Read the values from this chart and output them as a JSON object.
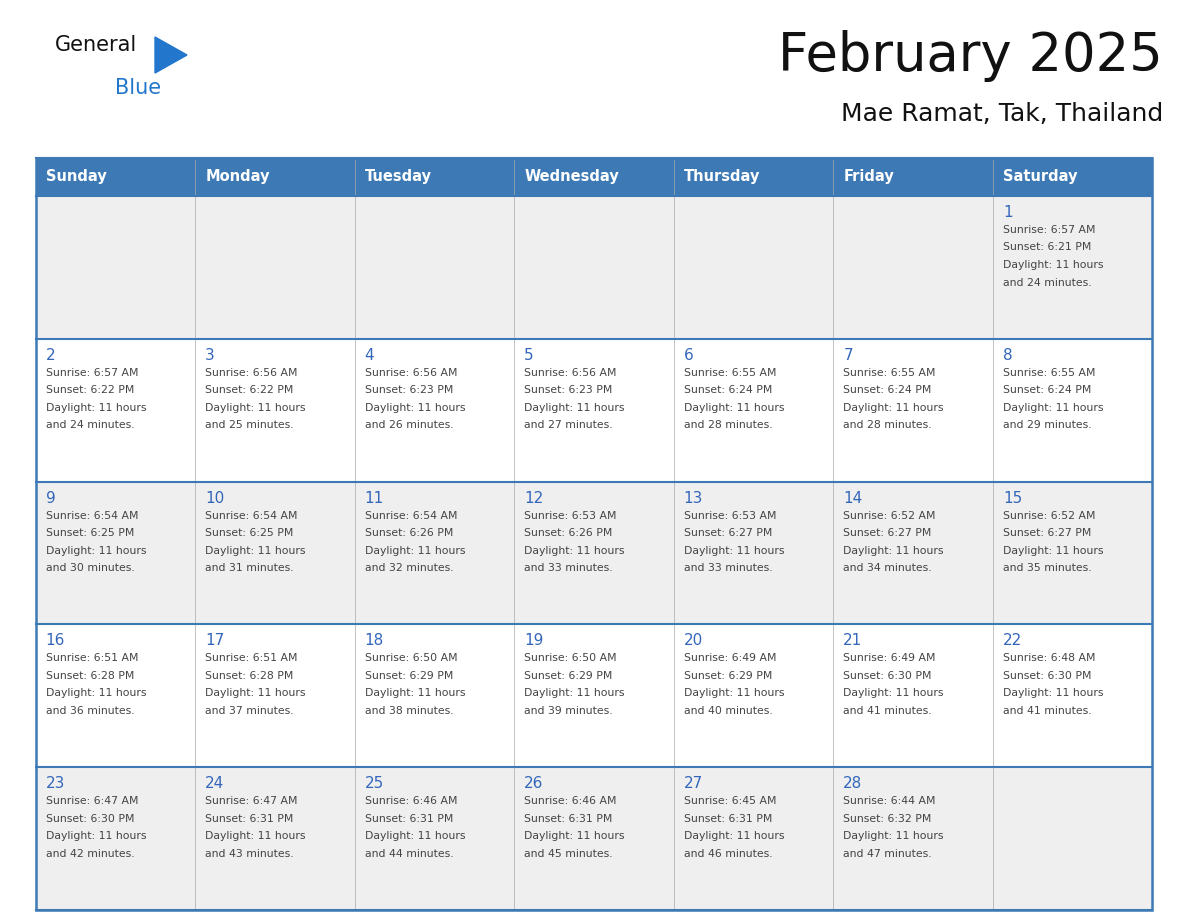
{
  "title": "February 2025",
  "subtitle": "Mae Ramat, Tak, Thailand",
  "days_of_week": [
    "Sunday",
    "Monday",
    "Tuesday",
    "Wednesday",
    "Thursday",
    "Friday",
    "Saturday"
  ],
  "header_bg": "#3d7ab5",
  "header_text": "#ffffff",
  "row_bg_light": "#efefef",
  "row_bg_white": "#ffffff",
  "day_num_color": "#3366bb",
  "text_color": "#444444",
  "border_color": "#3d7ab5",
  "thin_line_color": "#aaaaaa",
  "title_color": "#111111",
  "logo_black": "#111111",
  "logo_blue": "#2277cc",
  "triangle_blue": "#2277cc",
  "calendar": [
    [
      null,
      null,
      null,
      null,
      null,
      null,
      {
        "day": 1,
        "sunrise": "6:57 AM",
        "sunset": "6:21 PM",
        "daylight": "11 hours and 24 minutes."
      }
    ],
    [
      {
        "day": 2,
        "sunrise": "6:57 AM",
        "sunset": "6:22 PM",
        "daylight": "11 hours and 24 minutes."
      },
      {
        "day": 3,
        "sunrise": "6:56 AM",
        "sunset": "6:22 PM",
        "daylight": "11 hours and 25 minutes."
      },
      {
        "day": 4,
        "sunrise": "6:56 AM",
        "sunset": "6:23 PM",
        "daylight": "11 hours and 26 minutes."
      },
      {
        "day": 5,
        "sunrise": "6:56 AM",
        "sunset": "6:23 PM",
        "daylight": "11 hours and 27 minutes."
      },
      {
        "day": 6,
        "sunrise": "6:55 AM",
        "sunset": "6:24 PM",
        "daylight": "11 hours and 28 minutes."
      },
      {
        "day": 7,
        "sunrise": "6:55 AM",
        "sunset": "6:24 PM",
        "daylight": "11 hours and 28 minutes."
      },
      {
        "day": 8,
        "sunrise": "6:55 AM",
        "sunset": "6:24 PM",
        "daylight": "11 hours and 29 minutes."
      }
    ],
    [
      {
        "day": 9,
        "sunrise": "6:54 AM",
        "sunset": "6:25 PM",
        "daylight": "11 hours and 30 minutes."
      },
      {
        "day": 10,
        "sunrise": "6:54 AM",
        "sunset": "6:25 PM",
        "daylight": "11 hours and 31 minutes."
      },
      {
        "day": 11,
        "sunrise": "6:54 AM",
        "sunset": "6:26 PM",
        "daylight": "11 hours and 32 minutes."
      },
      {
        "day": 12,
        "sunrise": "6:53 AM",
        "sunset": "6:26 PM",
        "daylight": "11 hours and 33 minutes."
      },
      {
        "day": 13,
        "sunrise": "6:53 AM",
        "sunset": "6:27 PM",
        "daylight": "11 hours and 33 minutes."
      },
      {
        "day": 14,
        "sunrise": "6:52 AM",
        "sunset": "6:27 PM",
        "daylight": "11 hours and 34 minutes."
      },
      {
        "day": 15,
        "sunrise": "6:52 AM",
        "sunset": "6:27 PM",
        "daylight": "11 hours and 35 minutes."
      }
    ],
    [
      {
        "day": 16,
        "sunrise": "6:51 AM",
        "sunset": "6:28 PM",
        "daylight": "11 hours and 36 minutes."
      },
      {
        "day": 17,
        "sunrise": "6:51 AM",
        "sunset": "6:28 PM",
        "daylight": "11 hours and 37 minutes."
      },
      {
        "day": 18,
        "sunrise": "6:50 AM",
        "sunset": "6:29 PM",
        "daylight": "11 hours and 38 minutes."
      },
      {
        "day": 19,
        "sunrise": "6:50 AM",
        "sunset": "6:29 PM",
        "daylight": "11 hours and 39 minutes."
      },
      {
        "day": 20,
        "sunrise": "6:49 AM",
        "sunset": "6:29 PM",
        "daylight": "11 hours and 40 minutes."
      },
      {
        "day": 21,
        "sunrise": "6:49 AM",
        "sunset": "6:30 PM",
        "daylight": "11 hours and 41 minutes."
      },
      {
        "day": 22,
        "sunrise": "6:48 AM",
        "sunset": "6:30 PM",
        "daylight": "11 hours and 41 minutes."
      }
    ],
    [
      {
        "day": 23,
        "sunrise": "6:47 AM",
        "sunset": "6:30 PM",
        "daylight": "11 hours and 42 minutes."
      },
      {
        "day": 24,
        "sunrise": "6:47 AM",
        "sunset": "6:31 PM",
        "daylight": "11 hours and 43 minutes."
      },
      {
        "day": 25,
        "sunrise": "6:46 AM",
        "sunset": "6:31 PM",
        "daylight": "11 hours and 44 minutes."
      },
      {
        "day": 26,
        "sunrise": "6:46 AM",
        "sunset": "6:31 PM",
        "daylight": "11 hours and 45 minutes."
      },
      {
        "day": 27,
        "sunrise": "6:45 AM",
        "sunset": "6:31 PM",
        "daylight": "11 hours and 46 minutes."
      },
      {
        "day": 28,
        "sunrise": "6:44 AM",
        "sunset": "6:32 PM",
        "daylight": "11 hours and 47 minutes."
      },
      null
    ]
  ]
}
